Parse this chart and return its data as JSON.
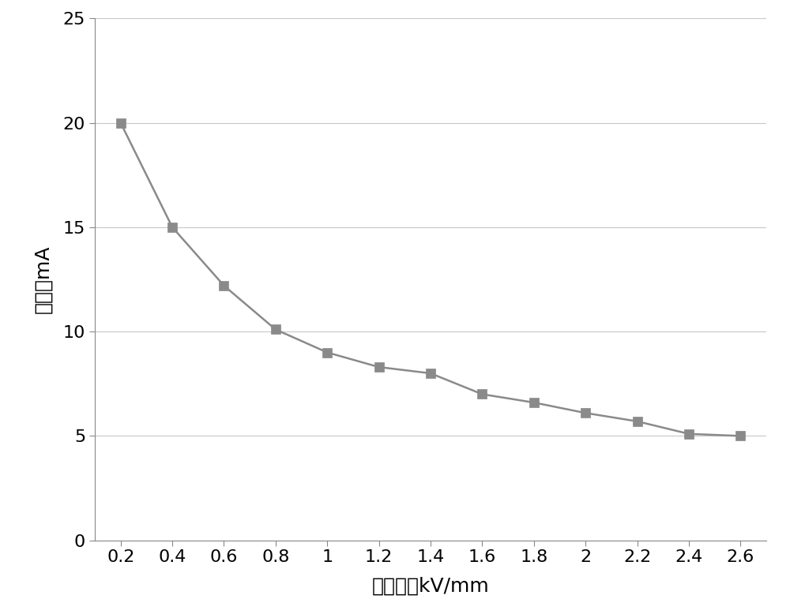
{
  "x": [
    0.2,
    0.4,
    0.6,
    0.8,
    1.0,
    1.2,
    1.4,
    1.6,
    1.8,
    2.0,
    2.2,
    2.4,
    2.6
  ],
  "y": [
    20.0,
    15.0,
    12.2,
    10.1,
    9.0,
    8.3,
    8.0,
    7.0,
    6.6,
    6.1,
    5.7,
    5.1,
    5.0
  ],
  "xlabel": "电场强度kV/mm",
  "ylabel": "管电流mA",
  "xlim": [
    0.1,
    2.7
  ],
  "ylim": [
    0,
    25
  ],
  "xticks": [
    0.2,
    0.4,
    0.6,
    0.8,
    1.0,
    1.2,
    1.4,
    1.6,
    1.8,
    2.0,
    2.2,
    2.4,
    2.6
  ],
  "yticks": [
    0,
    5,
    10,
    15,
    20,
    25
  ],
  "line_color": "#8a8a8a",
  "marker_color": "#8a8a8a",
  "marker": "s",
  "marker_size": 9,
  "line_width": 1.8,
  "background_color": "#ffffff",
  "grid_color": "#c8c8c8",
  "xlabel_fontsize": 18,
  "ylabel_fontsize": 18,
  "tick_fontsize": 16
}
